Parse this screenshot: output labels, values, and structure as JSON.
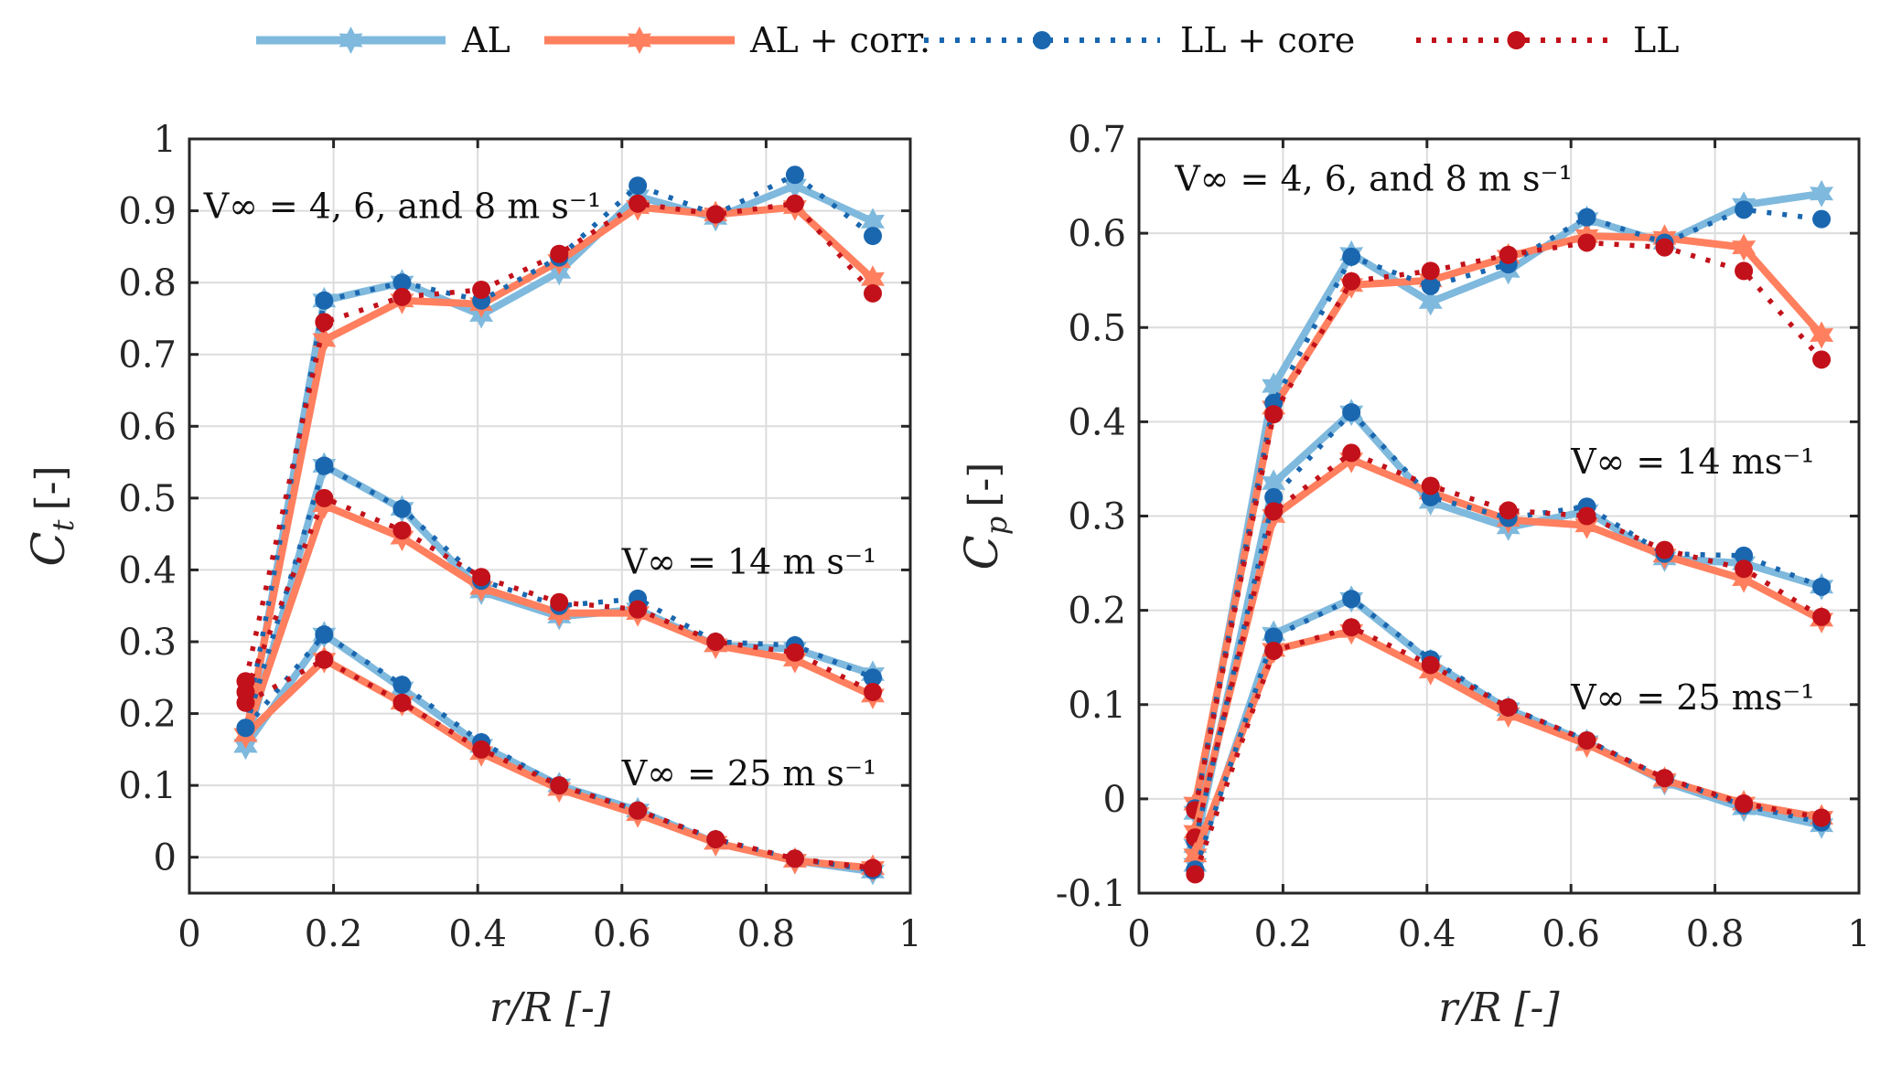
{
  "legend": {
    "position": "top-center",
    "entries": [
      {
        "key": "AL",
        "label": "AL",
        "color": "#7fb9dd",
        "line": "solid",
        "marker": "hexagram"
      },
      {
        "key": "ALcorr",
        "label": "AL + corr.",
        "color": "#ff7f5e",
        "line": "solid",
        "marker": "hexagram"
      },
      {
        "key": "LLcore",
        "label": "LL + core",
        "color": "#1a67b0",
        "line": "dotted",
        "marker": "circle"
      },
      {
        "key": "LL",
        "label": "LL",
        "color": "#c2111a",
        "line": "dotted",
        "marker": "circle"
      }
    ]
  },
  "chart_data": [
    {
      "type": "line",
      "id": "ct",
      "title": "",
      "xlabel": "r/R [-]",
      "ylabel_main": "C",
      "ylabel_sub": "t",
      "ylabel_unit": "[-]",
      "xlim": [
        0,
        1
      ],
      "ylim": [
        -0.05,
        1
      ],
      "grid": true,
      "xticks": [
        0,
        0.2,
        0.4,
        0.6,
        0.8,
        1
      ],
      "xtick_labels": [
        "0",
        "0.2",
        "0.4",
        "0.6",
        "0.8",
        "1"
      ],
      "yticks": [
        0,
        0.1,
        0.2,
        0.3,
        0.4,
        0.5,
        0.6,
        0.7,
        0.8,
        0.9,
        1
      ],
      "ytick_labels": [
        "0",
        "0.1",
        "0.2",
        "0.3",
        "0.4",
        "0.5",
        "0.6",
        "0.7",
        "0.8",
        "0.9",
        "1"
      ],
      "annotations": [
        {
          "text": "V∞ = 4, 6, and 8 m s⁻¹",
          "x": 0.02,
          "y": 0.89
        },
        {
          "text": "V∞ = 14 m s⁻¹",
          "x": 0.6,
          "y": 0.395
        },
        {
          "text": "V∞ = 25 m s⁻¹",
          "x": 0.6,
          "y": 0.1
        }
      ],
      "x": [
        0.078,
        0.187,
        0.295,
        0.405,
        0.513,
        0.622,
        0.73,
        0.84,
        0.948
      ],
      "groups": [
        {
          "name": "V∞ = 4, 6, and 8 m s⁻¹",
          "series": [
            {
              "key": "AL",
              "values": [
                0.155,
                0.775,
                0.8,
                0.755,
                0.815,
                0.92,
                0.89,
                0.935,
                0.885
              ]
            },
            {
              "key": "ALcorr",
              "values": [
                0.17,
                0.72,
                0.775,
                0.77,
                0.83,
                0.905,
                0.895,
                0.905,
                0.805
              ]
            },
            {
              "key": "LLcore",
              "values": [
                0.18,
                0.775,
                0.8,
                0.775,
                0.835,
                0.935,
                0.895,
                0.95,
                0.865
              ]
            },
            {
              "key": "LL",
              "values": [
                0.245,
                0.745,
                0.78,
                0.79,
                0.84,
                0.91,
                0.895,
                0.91,
                0.785
              ]
            }
          ]
        },
        {
          "name": "V∞ = 14 m s⁻¹",
          "series": [
            {
              "key": "AL",
              "values": [
                0.155,
                0.545,
                0.485,
                0.37,
                0.335,
                0.345,
                0.295,
                0.29,
                0.255
              ]
            },
            {
              "key": "ALcorr",
              "values": [
                0.17,
                0.49,
                0.445,
                0.375,
                0.34,
                0.34,
                0.295,
                0.275,
                0.225
              ]
            },
            {
              "key": "LLcore",
              "values": [
                0.18,
                0.545,
                0.485,
                0.385,
                0.35,
                0.36,
                0.3,
                0.295,
                0.25
              ]
            },
            {
              "key": "LL",
              "values": [
                0.23,
                0.5,
                0.455,
                0.39,
                0.355,
                0.345,
                0.3,
                0.285,
                0.23
              ]
            }
          ]
        },
        {
          "name": "V∞ = 25 m s⁻¹",
          "series": [
            {
              "key": "AL",
              "values": [
                0.155,
                0.31,
                0.235,
                0.155,
                0.1,
                0.065,
                0.02,
                -0.005,
                -0.02
              ]
            },
            {
              "key": "ALcorr",
              "values": [
                0.17,
                0.275,
                0.215,
                0.145,
                0.095,
                0.06,
                0.02,
                -0.005,
                -0.015
              ]
            },
            {
              "key": "LLcore",
              "values": [
                0.18,
                0.31,
                0.24,
                0.16,
                0.1,
                0.065,
                0.025,
                -0.002,
                -0.018
              ]
            },
            {
              "key": "LL",
              "values": [
                0.215,
                0.275,
                0.215,
                0.15,
                0.1,
                0.065,
                0.025,
                -0.002,
                -0.015
              ]
            }
          ]
        }
      ]
    },
    {
      "type": "line",
      "id": "cp",
      "title": "",
      "xlabel": "r/R [-]",
      "ylabel_main": "C",
      "ylabel_sub": "p",
      "ylabel_unit": "[-]",
      "xlim": [
        0,
        1
      ],
      "ylim": [
        -0.1,
        0.7
      ],
      "grid": true,
      "xticks": [
        0,
        0.2,
        0.4,
        0.6,
        0.8,
        1
      ],
      "xtick_labels": [
        "0",
        "0.2",
        "0.4",
        "0.6",
        "0.8",
        "1"
      ],
      "yticks": [
        -0.1,
        0,
        0.1,
        0.2,
        0.3,
        0.4,
        0.5,
        0.6,
        0.7
      ],
      "ytick_labels": [
        "-0.1",
        "0",
        "0.1",
        "0.2",
        "0.3",
        "0.4",
        "0.5",
        "0.6",
        "0.7"
      ],
      "annotations": [
        {
          "text": "V∞ = 4, 6, and 8 m s⁻¹",
          "x": 0.05,
          "y": 0.645
        },
        {
          "text": "V∞ = 14 ms⁻¹",
          "x": 0.6,
          "y": 0.345
        },
        {
          "text": "V∞ = 25 ms⁻¹",
          "x": 0.6,
          "y": 0.095
        }
      ],
      "x": [
        0.078,
        0.187,
        0.295,
        0.405,
        0.513,
        0.622,
        0.73,
        0.84,
        0.948
      ],
      "groups": [
        {
          "name": "V∞ = 4, 6, and 8 m s⁻¹",
          "series": [
            {
              "key": "AL",
              "values": [
                -0.015,
                0.438,
                0.578,
                0.527,
                0.56,
                0.615,
                0.59,
                0.63,
                0.642
              ]
            },
            {
              "key": "ALcorr",
              "values": [
                -0.005,
                0.415,
                0.545,
                0.55,
                0.575,
                0.597,
                0.595,
                0.585,
                0.492
              ]
            },
            {
              "key": "LLcore",
              "values": [
                -0.01,
                0.42,
                0.575,
                0.544,
                0.567,
                0.617,
                0.59,
                0.625,
                0.615
              ]
            },
            {
              "key": "LL",
              "values": [
                -0.012,
                0.408,
                0.549,
                0.56,
                0.577,
                0.59,
                0.585,
                0.56,
                0.466
              ]
            }
          ]
        },
        {
          "name": "V∞ = 14 m s⁻¹",
          "series": [
            {
              "key": "AL",
              "values": [
                -0.05,
                0.335,
                0.41,
                0.315,
                0.288,
                0.305,
                0.255,
                0.25,
                0.225
              ]
            },
            {
              "key": "ALcorr",
              "values": [
                -0.035,
                0.3,
                0.36,
                0.325,
                0.296,
                0.29,
                0.258,
                0.233,
                0.19
              ]
            },
            {
              "key": "LLcore",
              "values": [
                -0.045,
                0.32,
                0.41,
                0.32,
                0.298,
                0.31,
                0.26,
                0.258,
                0.225
              ]
            },
            {
              "key": "LL",
              "values": [
                -0.041,
                0.305,
                0.367,
                0.332,
                0.306,
                0.3,
                0.264,
                0.244,
                0.193
              ]
            }
          ]
        },
        {
          "name": "V∞ = 25 m s⁻¹",
          "series": [
            {
              "key": "AL",
              "values": [
                -0.07,
                0.175,
                0.212,
                0.145,
                0.095,
                0.06,
                0.018,
                -0.01,
                -0.028
              ]
            },
            {
              "key": "ALcorr",
              "values": [
                -0.06,
                0.158,
                0.178,
                0.135,
                0.09,
                0.058,
                0.02,
                -0.005,
                -0.02
              ]
            },
            {
              "key": "LLcore",
              "values": [
                -0.075,
                0.172,
                0.212,
                0.148,
                0.097,
                0.062,
                0.022,
                -0.007,
                -0.025
              ]
            },
            {
              "key": "LL",
              "values": [
                -0.08,
                0.157,
                0.182,
                0.142,
                0.097,
                0.062,
                0.022,
                -0.005,
                -0.02
              ]
            }
          ]
        }
      ]
    }
  ]
}
